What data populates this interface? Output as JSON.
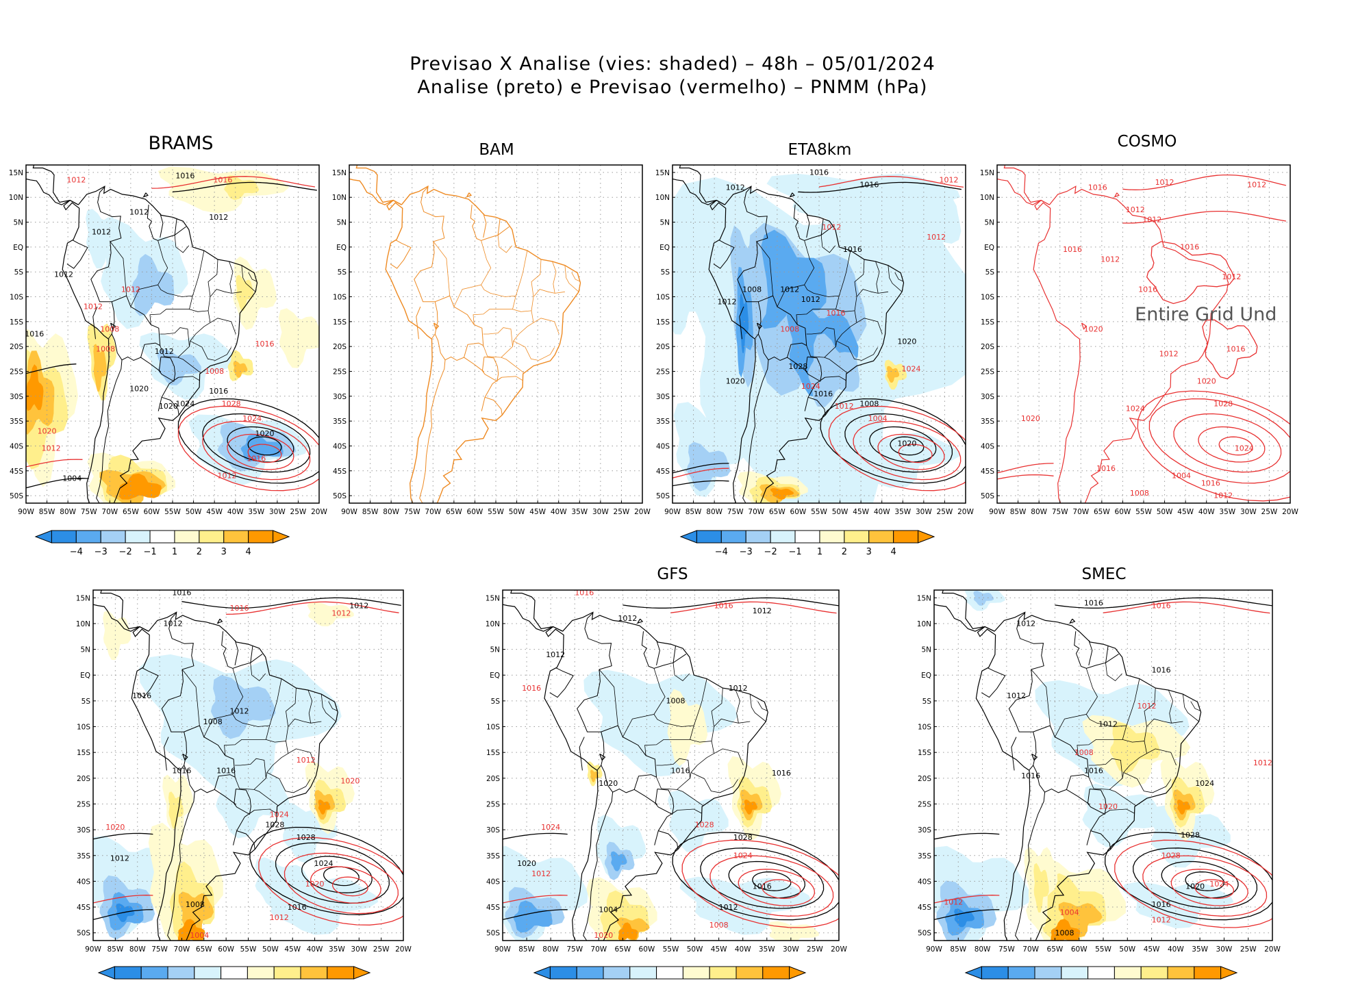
{
  "title_line1": "Previsao X Analise (vies: shaded) – 48h – 05/01/2024",
  "title_line2": "Analise (preto) e Previsao (vermelho) – PNMM (hPa)",
  "lat_labels": [
    "15N",
    "10N",
    "5N",
    "EQ",
    "5S",
    "10S",
    "15S",
    "20S",
    "25S",
    "30S",
    "35S",
    "40S",
    "45S",
    "50S"
  ],
  "lon_labels": [
    "90W",
    "85W",
    "80W",
    "75W",
    "70W",
    "65W",
    "60W",
    "55W",
    "50W",
    "45W",
    "40W",
    "35W",
    "30W",
    "25W",
    "20W"
  ],
  "colorbar_labels": [
    "−4",
    "−3",
    "−2",
    "−1",
    "1",
    "2",
    "3",
    "4"
  ],
  "colors": {
    "neg4": "#2c8ee6",
    "neg3": "#5aaaf0",
    "neg2": "#a4d0f5",
    "neg1": "#d8f3fc",
    "pos1": "#fffbd0",
    "pos2": "#ffef8c",
    "pos3": "#ffc33c",
    "pos4": "#ff9900",
    "analysis": "#000000",
    "forecast": "#e83030",
    "coast_bam": "#ee8a22"
  },
  "panels": [
    {
      "id": "brams",
      "title": "BRAMS",
      "undefined_msg": ""
    },
    {
      "id": "bam",
      "title": "BAM",
      "undefined_msg": ""
    },
    {
      "id": "eta",
      "title": "ETA8km",
      "undefined_msg": ""
    },
    {
      "id": "cosmo",
      "title": "COSMO",
      "undefined_msg": "Entire Grid Und"
    },
    {
      "id": "p5",
      "title": "",
      "undefined_msg": ""
    },
    {
      "id": "gfs",
      "title": "GFS",
      "undefined_msg": ""
    },
    {
      "id": "smec",
      "title": "SMEC",
      "undefined_msg": ""
    }
  ],
  "isobar_labels": {
    "brams": [
      "1016",
      "1016",
      "1012",
      "1012",
      "1012",
      "1012",
      "1012",
      "1012",
      "1008",
      "1012",
      "1016",
      "1008",
      "1012",
      "1016",
      "1008",
      "1016",
      "1020",
      "1020",
      "1024",
      "1028",
      "1024",
      "1020",
      "1016",
      "1012",
      "1012",
      "1004",
      "1020"
    ],
    "eta": [
      "1016",
      "1016",
      "1012",
      "1012",
      "1012",
      "1012",
      "1016",
      "1012",
      "1012",
      "1008",
      "1016",
      "1012",
      "1008",
      "1020",
      "1024",
      "1028",
      "1024",
      "1020",
      "1016",
      "1012",
      "1008",
      "1004",
      "1020"
    ],
    "cosmo": [
      "1016",
      "1012",
      "1012",
      "1012",
      "1012",
      "1016",
      "1016",
      "1012",
      "1012",
      "1016",
      "1020",
      "1012",
      "1016",
      "1020",
      "1024",
      "1028",
      "1024",
      "1016",
      "1012",
      "1008",
      "1004",
      "1020",
      "1016"
    ],
    "p5": [
      "1016",
      "1016",
      "1012",
      "1012",
      "1012",
      "1016",
      "1012",
      "1008",
      "1012",
      "1016",
      "1016",
      "1020",
      "1024",
      "1028",
      "1028",
      "1024",
      "1020",
      "1016",
      "1012",
      "1008",
      "1004",
      "1020",
      "1012"
    ],
    "gfs": [
      "1016",
      "1016",
      "1012",
      "1012",
      "1012",
      "1016",
      "1008",
      "1012",
      "1016",
      "1016",
      "1020",
      "1024",
      "1028",
      "1028",
      "1024",
      "1020",
      "1016",
      "1012",
      "1008",
      "1004",
      "1020",
      "1012"
    ],
    "smec": [
      "1016",
      "1016",
      "1012",
      "1012",
      "1012",
      "1016",
      "1012",
      "1012",
      "1008",
      "1016",
      "1016",
      "1020",
      "1024",
      "1028",
      "1028",
      "1024",
      "1020",
      "1016",
      "1012",
      "1008",
      "1004",
      "1012"
    ]
  }
}
